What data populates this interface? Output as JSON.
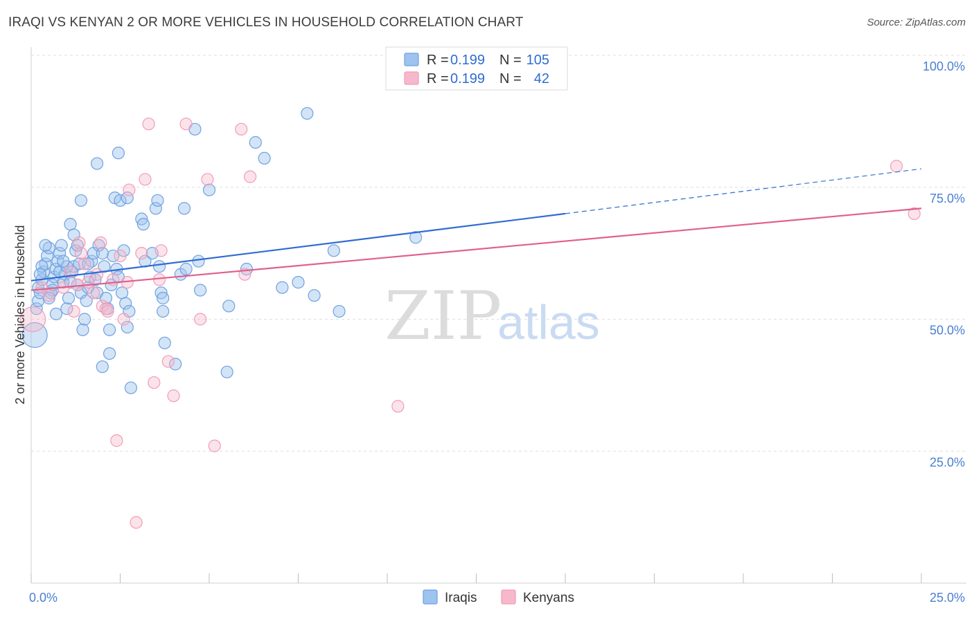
{
  "title": "IRAQI VS KENYAN 2 OR MORE VEHICLES IN HOUSEHOLD CORRELATION CHART",
  "source": "Source: ZipAtlas.com",
  "watermark": {
    "zip": "ZIP",
    "atlas": "atlas"
  },
  "legend": {
    "rows": [
      {
        "r_label": "R =",
        "r_value": "0.199",
        "n_label": "N =",
        "n_value": "105",
        "color": "#9dc3ee"
      },
      {
        "r_label": "R =",
        "r_value": "0.199",
        "n_label": "N =",
        "n_value": "42",
        "color": "#f6b8cb"
      }
    ]
  },
  "bottom_legend": [
    {
      "label": "Iraqis",
      "color": "#9dc3ee"
    },
    {
      "label": "Kenyans",
      "color": "#f6b8cb"
    }
  ],
  "chart_data": {
    "type": "scatter",
    "title": "IRAQI VS KENYAN 2 OR MORE VEHICLES IN HOUSEHOLD CORRELATION CHART",
    "xlabel": "",
    "ylabel": "2 or more Vehicles in Household",
    "xlim": [
      0,
      25
    ],
    "ylim": [
      0,
      100
    ],
    "x_ticks": [
      {
        "value": 0,
        "label": "0.0%"
      },
      {
        "value": 25,
        "label": "25.0%"
      }
    ],
    "y_ticks": [
      {
        "value": 25,
        "label": "25.0%"
      },
      {
        "value": 50,
        "label": "50.0%"
      },
      {
        "value": 75,
        "label": "75.0%"
      },
      {
        "value": 100,
        "label": "100.0%"
      }
    ],
    "grid": true,
    "legend_position": "top-center",
    "series": [
      {
        "name": "Iraqis",
        "color": "#6ea1e0",
        "trend": {
          "x0": 0,
          "y0": 57.3,
          "x1": 15,
          "y1": 70.0,
          "dashed_to_x": 25,
          "dashed_to_y": 78.5,
          "color": "#2f6cd0"
        },
        "points": [
          [
            0.1,
            47.0
          ],
          [
            0.15,
            52.0
          ],
          [
            0.2,
            53.5
          ],
          [
            0.25,
            55.0
          ],
          [
            0.2,
            56.0
          ],
          [
            0.3,
            57.5
          ],
          [
            0.35,
            59.0
          ],
          [
            0.4,
            60.5
          ],
          [
            0.45,
            62.0
          ],
          [
            0.5,
            63.5
          ],
          [
            0.55,
            55.0
          ],
          [
            0.6,
            56.5
          ],
          [
            0.65,
            58.0
          ],
          [
            0.7,
            59.5
          ],
          [
            0.75,
            61.0
          ],
          [
            0.8,
            62.5
          ],
          [
            0.85,
            64.0
          ],
          [
            0.9,
            57.0
          ],
          [
            0.95,
            58.5
          ],
          [
            1.0,
            52.0
          ],
          [
            1.05,
            54.0
          ],
          [
            1.1,
            57.0
          ],
          [
            1.15,
            59.0
          ],
          [
            1.2,
            60.0
          ],
          [
            1.25,
            63.0
          ],
          [
            1.1,
            68.0
          ],
          [
            1.2,
            66.0
          ],
          [
            1.3,
            64.0
          ],
          [
            1.35,
            60.5
          ],
          [
            1.4,
            55.0
          ],
          [
            1.45,
            48.0
          ],
          [
            1.5,
            50.0
          ],
          [
            1.55,
            53.5
          ],
          [
            1.6,
            56.0
          ],
          [
            1.65,
            58.0
          ],
          [
            1.7,
            61.0
          ],
          [
            1.75,
            62.5
          ],
          [
            1.8,
            57.5
          ],
          [
            1.85,
            55.0
          ],
          [
            1.9,
            64.0
          ],
          [
            2.0,
            41.0
          ],
          [
            2.05,
            60.0
          ],
          [
            2.1,
            54.0
          ],
          [
            2.15,
            52.0
          ],
          [
            2.2,
            48.0
          ],
          [
            2.2,
            43.5
          ],
          [
            2.25,
            56.5
          ],
          [
            2.3,
            62.0
          ],
          [
            2.35,
            73.0
          ],
          [
            2.4,
            59.5
          ],
          [
            2.45,
            58.0
          ],
          [
            2.5,
            72.5
          ],
          [
            2.55,
            55.0
          ],
          [
            2.6,
            63.0
          ],
          [
            2.65,
            53.0
          ],
          [
            2.7,
            48.5
          ],
          [
            2.75,
            51.5
          ],
          [
            2.8,
            37.0
          ],
          [
            2.7,
            73.0
          ],
          [
            3.1,
            69.0
          ],
          [
            3.15,
            68.0
          ],
          [
            3.2,
            61.0
          ],
          [
            3.4,
            62.5
          ],
          [
            3.5,
            71.0
          ],
          [
            3.55,
            72.5
          ],
          [
            3.6,
            60.0
          ],
          [
            3.65,
            55.0
          ],
          [
            3.7,
            54.0
          ],
          [
            3.7,
            51.5
          ],
          [
            3.75,
            45.5
          ],
          [
            4.05,
            41.5
          ],
          [
            4.2,
            58.5
          ],
          [
            4.3,
            71.0
          ],
          [
            4.35,
            59.5
          ],
          [
            4.6,
            86.0
          ],
          [
            4.7,
            61.0
          ],
          [
            4.75,
            55.5
          ],
          [
            5.0,
            74.5
          ],
          [
            5.5,
            40.0
          ],
          [
            5.55,
            52.5
          ],
          [
            6.05,
            59.5
          ],
          [
            6.3,
            83.5
          ],
          [
            6.55,
            80.5
          ],
          [
            7.05,
            56.0
          ],
          [
            7.5,
            57.0
          ],
          [
            7.75,
            89.0
          ],
          [
            7.95,
            54.5
          ],
          [
            8.5,
            63.0
          ],
          [
            8.65,
            51.5
          ],
          [
            10.8,
            65.5
          ],
          [
            1.85,
            79.5
          ],
          [
            2.45,
            81.5
          ],
          [
            1.4,
            72.5
          ],
          [
            0.6,
            55.5
          ],
          [
            0.8,
            59.0
          ],
          [
            1.0,
            60.0
          ],
          [
            0.9,
            61.0
          ],
          [
            0.5,
            54.0
          ],
          [
            0.7,
            51.0
          ],
          [
            1.3,
            56.5
          ],
          [
            0.4,
            64.0
          ],
          [
            0.3,
            60.0
          ],
          [
            0.25,
            58.5
          ],
          [
            1.6,
            60.5
          ],
          [
            2.0,
            62.5
          ]
        ]
      },
      {
        "name": "Kenyans",
        "color": "#f39bb7",
        "trend": {
          "x0": 0,
          "y0": 55.5,
          "x1": 25,
          "y1": 71.0,
          "color": "#e0608c"
        },
        "points": [
          [
            0.05,
            50.0
          ],
          [
            0.3,
            56.0
          ],
          [
            0.5,
            54.5
          ],
          [
            0.9,
            56.0
          ],
          [
            1.1,
            59.0
          ],
          [
            1.2,
            51.5
          ],
          [
            1.35,
            64.5
          ],
          [
            1.4,
            62.5
          ],
          [
            1.5,
            60.5
          ],
          [
            1.6,
            57.0
          ],
          [
            1.75,
            55.0
          ],
          [
            1.85,
            58.5
          ],
          [
            1.95,
            64.5
          ],
          [
            2.0,
            52.5
          ],
          [
            2.1,
            52.0
          ],
          [
            2.15,
            51.5
          ],
          [
            2.3,
            57.5
          ],
          [
            2.4,
            27.0
          ],
          [
            2.5,
            62.0
          ],
          [
            2.6,
            50.0
          ],
          [
            2.7,
            57.0
          ],
          [
            2.75,
            74.5
          ],
          [
            2.95,
            11.5
          ],
          [
            3.1,
            62.5
          ],
          [
            3.2,
            76.5
          ],
          [
            3.3,
            87.0
          ],
          [
            3.45,
            38.0
          ],
          [
            3.6,
            57.5
          ],
          [
            3.65,
            63.0
          ],
          [
            3.85,
            42.0
          ],
          [
            4.0,
            35.5
          ],
          [
            4.35,
            87.0
          ],
          [
            4.75,
            50.0
          ],
          [
            4.95,
            76.5
          ],
          [
            5.15,
            26.0
          ],
          [
            5.9,
            86.0
          ],
          [
            6.0,
            58.5
          ],
          [
            6.15,
            77.0
          ],
          [
            10.3,
            33.5
          ],
          [
            24.3,
            79.0
          ],
          [
            24.8,
            70.0
          ],
          [
            1.3,
            56.5
          ]
        ]
      }
    ]
  }
}
